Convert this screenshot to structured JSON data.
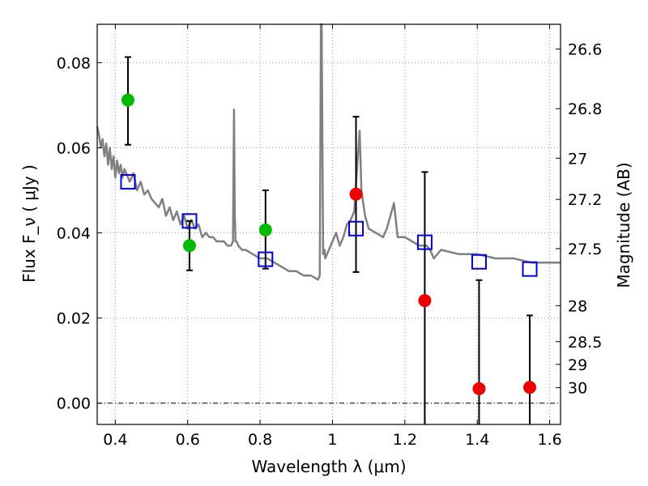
{
  "chart_data": {
    "type": "scatter",
    "xlabel": "Wavelength  λ (μm)",
    "ylabel": "Flux  F_ν  ( μJy )",
    "y2label": "Magnitude (AB)",
    "xlim": [
      0.35,
      1.63
    ],
    "ylim": [
      -0.005,
      0.089
    ],
    "grid": true,
    "x_ticks": [
      0.4,
      0.6,
      0.8,
      1.0,
      1.2,
      1.4,
      1.6
    ],
    "x_tick_labels": [
      "0.4",
      "0.6",
      "0.8",
      "1",
      "1.2",
      "1.4",
      "1.6"
    ],
    "y_ticks": [
      0.0,
      0.02,
      0.04,
      0.06,
      0.08
    ],
    "y_tick_labels": [
      "0.00",
      "0.02",
      "0.04",
      "0.06",
      "0.08"
    ],
    "y2_ticks": [
      {
        "label": "26.6",
        "mag": 26.6
      },
      {
        "label": "26.8",
        "mag": 26.8
      },
      {
        "label": "27",
        "mag": 27.0
      },
      {
        "label": "27.2",
        "mag": 27.2
      },
      {
        "label": "27.5",
        "mag": 27.5
      },
      {
        "label": "28",
        "mag": 28.0
      },
      {
        "label": "28.5",
        "mag": 28.5
      },
      {
        "label": "29",
        "mag": 29.0
      },
      {
        "label": "30",
        "mag": 30.0
      }
    ],
    "zero_line": 0.0,
    "sed_model": {
      "color": "#808080",
      "x": [
        0.35,
        0.355,
        0.36,
        0.365,
        0.37,
        0.375,
        0.38,
        0.385,
        0.39,
        0.395,
        0.4,
        0.405,
        0.41,
        0.415,
        0.42,
        0.425,
        0.43,
        0.44,
        0.45,
        0.46,
        0.47,
        0.48,
        0.49,
        0.5,
        0.51,
        0.52,
        0.53,
        0.54,
        0.55,
        0.56,
        0.57,
        0.58,
        0.59,
        0.6,
        0.61,
        0.62,
        0.63,
        0.64,
        0.65,
        0.66,
        0.67,
        0.68,
        0.69,
        0.7,
        0.71,
        0.72,
        0.725,
        0.728,
        0.73,
        0.732,
        0.735,
        0.74,
        0.75,
        0.76,
        0.78,
        0.8,
        0.82,
        0.84,
        0.86,
        0.88,
        0.9,
        0.92,
        0.94,
        0.96,
        0.965,
        0.968,
        0.97,
        0.974,
        0.978,
        0.98,
        0.99,
        1.0,
        1.01,
        1.02,
        1.03,
        1.04,
        1.05,
        1.06,
        1.07,
        1.075,
        1.08,
        1.09,
        1.1,
        1.12,
        1.14,
        1.15,
        1.16,
        1.17,
        1.18,
        1.2,
        1.22,
        1.24,
        1.26,
        1.27,
        1.28,
        1.3,
        1.35,
        1.4,
        1.45,
        1.5,
        1.55,
        1.6,
        1.63
      ],
      "y": [
        0.065,
        0.063,
        0.06,
        0.062,
        0.058,
        0.061,
        0.056,
        0.06,
        0.055,
        0.058,
        0.053,
        0.057,
        0.054,
        0.056,
        0.053,
        0.055,
        0.054,
        0.052,
        0.054,
        0.05,
        0.052,
        0.049,
        0.05,
        0.048,
        0.047,
        0.046,
        0.048,
        0.044,
        0.046,
        0.043,
        0.045,
        0.042,
        0.044,
        0.041,
        0.043,
        0.041,
        0.042,
        0.039,
        0.04,
        0.039,
        0.039,
        0.038,
        0.038,
        0.038,
        0.037,
        0.037,
        0.038,
        0.069,
        0.045,
        0.038,
        0.038,
        0.037,
        0.036,
        0.036,
        0.035,
        0.034,
        0.034,
        0.033,
        0.032,
        0.031,
        0.031,
        0.03,
        0.03,
        0.029,
        0.03,
        0.092,
        0.092,
        0.035,
        0.036,
        0.034,
        0.036,
        0.038,
        0.04,
        0.037,
        0.039,
        0.042,
        0.043,
        0.045,
        0.058,
        0.064,
        0.05,
        0.044,
        0.041,
        0.04,
        0.039,
        0.041,
        0.044,
        0.047,
        0.039,
        0.039,
        0.038,
        0.037,
        0.037,
        0.036,
        0.034,
        0.036,
        0.035,
        0.035,
        0.034,
        0.034,
        0.033,
        0.033,
        0.033
      ]
    },
    "model_photometry": {
      "color": "#0000dd",
      "x": [
        0.435,
        0.605,
        0.815,
        1.065,
        1.255,
        1.405,
        1.545
      ],
      "y": [
        0.052,
        0.0428,
        0.0338,
        0.041,
        0.0378,
        0.0332,
        0.0315
      ]
    },
    "detections": {
      "color": "#00bb00",
      "x": [
        0.435,
        0.605,
        0.815
      ],
      "y": [
        0.0712,
        0.037,
        0.0407
      ],
      "yerr_low": [
        0.0607,
        0.0312,
        0.0316
      ],
      "yerr_high": [
        0.0813,
        0.0428,
        0.05
      ]
    },
    "non_detections": {
      "color": "#ee0000",
      "x": [
        1.065,
        1.255,
        1.405,
        1.545
      ],
      "y": [
        0.0491,
        0.0241,
        0.0034,
        0.0037
      ],
      "yerr_low": [
        0.0308,
        -0.005,
        -0.005,
        -0.005
      ],
      "yerr_high": [
        0.0673,
        0.0543,
        0.0289,
        0.0206
      ]
    }
  }
}
